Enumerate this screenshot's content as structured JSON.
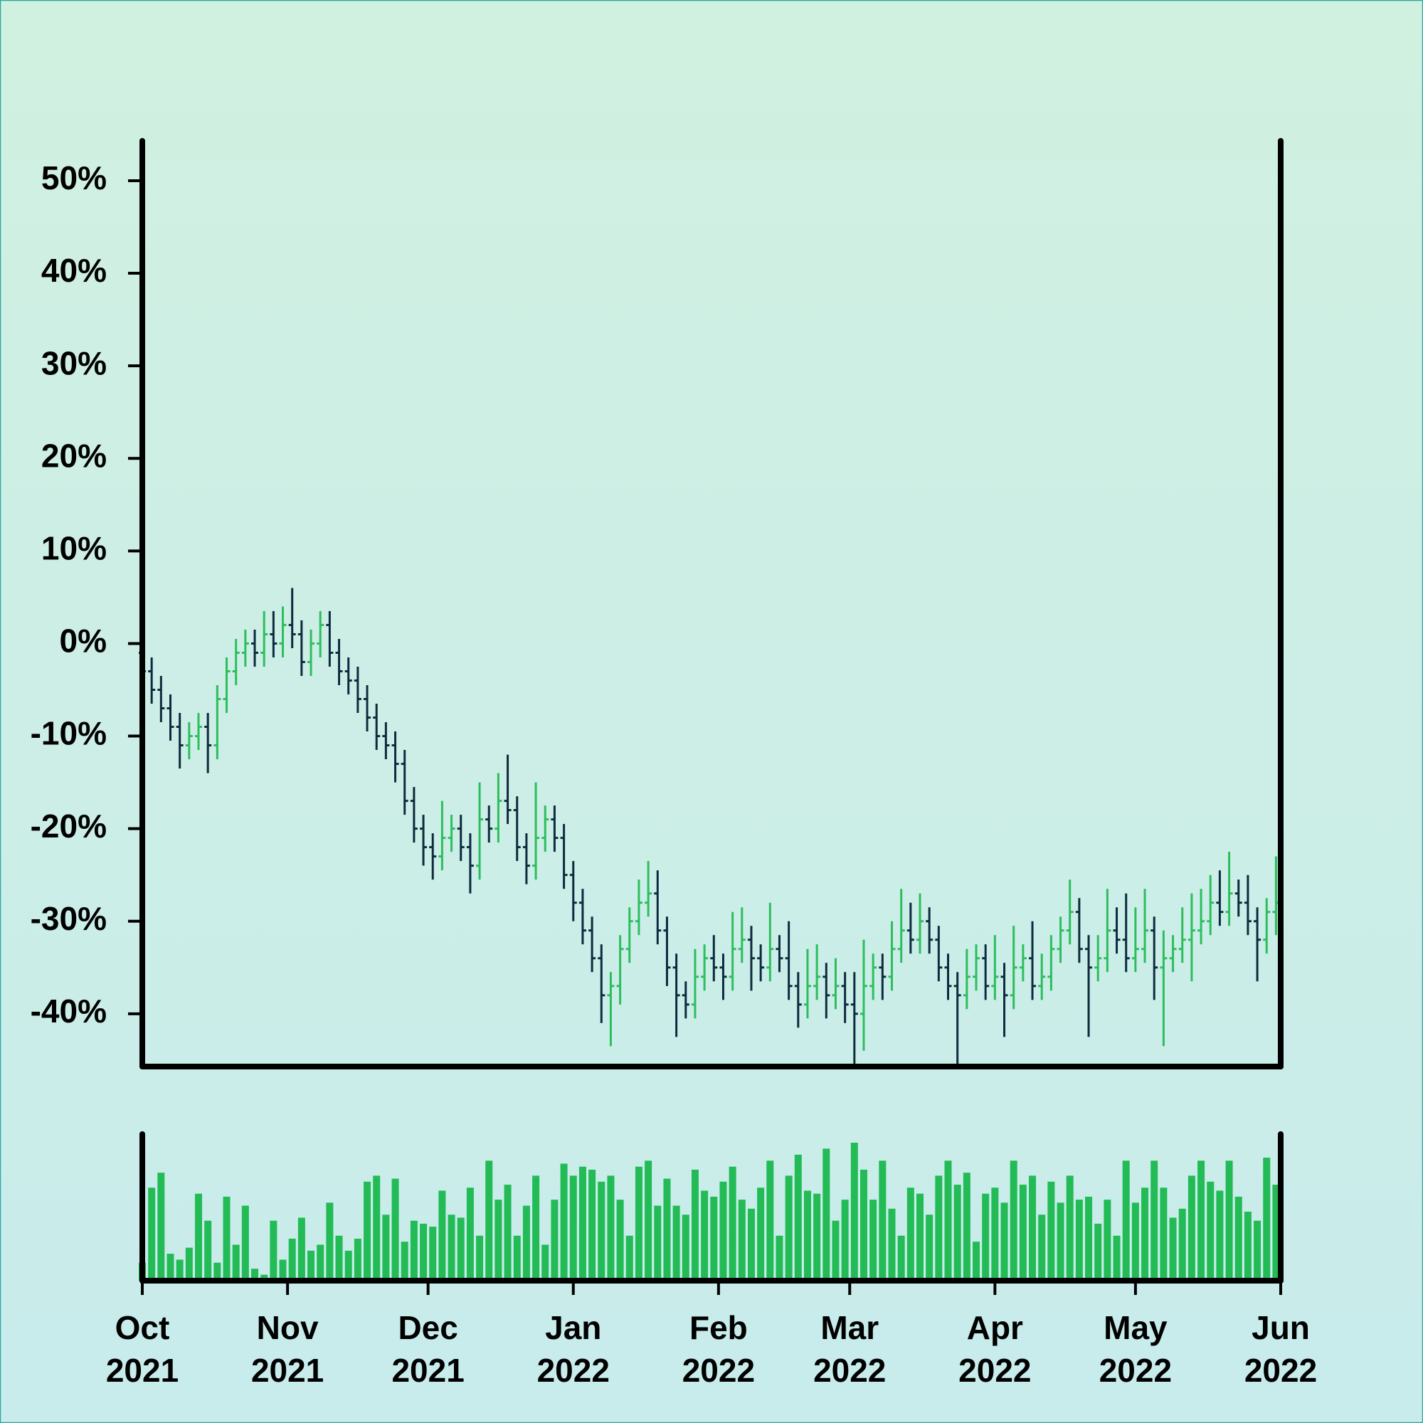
{
  "chart_data": {
    "type": "ohlc",
    "up_color": "#2dbe5c",
    "down_color": "#0d2b3e",
    "volume_color": "#22bb55",
    "x": [
      "2021-10-01",
      "2021-10-03",
      "2021-10-05",
      "2021-10-07",
      "2021-10-09",
      "2021-10-11",
      "2021-10-13",
      "2021-10-15",
      "2021-10-17",
      "2021-10-19",
      "2021-10-21",
      "2021-10-23",
      "2021-10-25",
      "2021-10-27",
      "2021-10-29",
      "2021-10-31",
      "2021-11-02",
      "2021-11-04",
      "2021-11-06",
      "2021-11-08",
      "2021-11-10",
      "2021-11-12",
      "2021-11-14",
      "2021-11-16",
      "2021-11-18",
      "2021-11-20",
      "2021-11-22",
      "2021-11-24",
      "2021-11-26",
      "2021-11-28",
      "2021-11-30",
      "2021-12-02",
      "2021-12-04",
      "2021-12-06",
      "2021-12-08",
      "2021-12-10",
      "2021-12-12",
      "2021-12-14",
      "2021-12-16",
      "2021-12-18",
      "2021-12-20",
      "2021-12-22",
      "2021-12-24",
      "2021-12-26",
      "2021-12-28",
      "2021-12-30",
      "2022-01-01",
      "2022-01-03",
      "2022-01-05",
      "2022-01-07",
      "2022-01-09",
      "2022-01-11",
      "2022-01-13",
      "2022-01-15",
      "2022-01-17",
      "2022-01-19",
      "2022-01-21",
      "2022-01-23",
      "2022-01-25",
      "2022-01-27",
      "2022-01-29",
      "2022-01-31",
      "2022-02-02",
      "2022-02-04",
      "2022-02-06",
      "2022-02-08",
      "2022-02-10",
      "2022-02-12",
      "2022-02-14",
      "2022-02-16",
      "2022-02-18",
      "2022-02-20",
      "2022-02-22",
      "2022-02-24",
      "2022-02-26",
      "2022-02-28",
      "2022-03-02",
      "2022-03-04",
      "2022-03-06",
      "2022-03-08",
      "2022-03-10",
      "2022-03-12",
      "2022-03-14",
      "2022-03-16",
      "2022-03-18",
      "2022-03-20",
      "2022-03-22",
      "2022-03-24",
      "2022-03-26",
      "2022-03-28",
      "2022-03-30",
      "2022-04-01",
      "2022-04-03",
      "2022-04-05",
      "2022-04-07",
      "2022-04-09",
      "2022-04-11",
      "2022-04-13",
      "2022-04-15",
      "2022-04-17",
      "2022-04-19",
      "2022-04-21",
      "2022-04-23",
      "2022-04-25",
      "2022-04-27",
      "2022-04-29",
      "2022-05-01",
      "2022-05-03",
      "2022-05-05",
      "2022-05-07",
      "2022-05-09",
      "2022-05-11",
      "2022-05-13",
      "2022-05-15",
      "2022-05-17",
      "2022-05-19",
      "2022-05-21",
      "2022-05-23",
      "2022-05-25",
      "2022-05-27",
      "2022-05-29",
      "2022-05-31"
    ],
    "values": [
      [
        -1,
        0.5,
        -4.5,
        -3
      ],
      [
        -3,
        -1.5,
        -6.5,
        -5
      ],
      [
        -5,
        -3.5,
        -8.5,
        -7
      ],
      [
        -7,
        -5.5,
        -10.5,
        -9
      ],
      [
        -9,
        -7.5,
        -13.5,
        -11
      ],
      [
        -11,
        -8.5,
        -12.5,
        -10
      ],
      [
        -10,
        -7.5,
        -11.5,
        -9
      ],
      [
        -9,
        -7.5,
        -14,
        -11
      ],
      [
        -11,
        -4.5,
        -12.5,
        -6
      ],
      [
        -6,
        -1.5,
        -7.5,
        -3
      ],
      [
        -3,
        0.5,
        -4.5,
        -1
      ],
      [
        -1,
        1.5,
        -2.5,
        0
      ],
      [
        0,
        1.5,
        -2.5,
        -1
      ],
      [
        -1,
        3.5,
        -2.5,
        1
      ],
      [
        1,
        3.5,
        -1.5,
        0
      ],
      [
        0,
        4,
        -1.5,
        2
      ],
      [
        2,
        6,
        -0.5,
        1
      ],
      [
        1,
        2.5,
        -3.5,
        -2
      ],
      [
        -2,
        1.5,
        -3.5,
        0
      ],
      [
        0,
        3.5,
        -1.5,
        2
      ],
      [
        2,
        3.5,
        -2.5,
        -1
      ],
      [
        -1,
        0.5,
        -4.5,
        -3
      ],
      [
        -3,
        -1.5,
        -5.5,
        -4
      ],
      [
        -4,
        -2.5,
        -7.5,
        -6
      ],
      [
        -6,
        -4.5,
        -9.5,
        -8
      ],
      [
        -8,
        -6.5,
        -11.5,
        -10
      ],
      [
        -10,
        -8.5,
        -12.5,
        -11
      ],
      [
        -11,
        -9.5,
        -15,
        -13
      ],
      [
        -13,
        -11.5,
        -18.5,
        -17
      ],
      [
        -17,
        -15.5,
        -21.5,
        -20
      ],
      [
        -20,
        -18.5,
        -24,
        -22
      ],
      [
        -22,
        -20.5,
        -25.5,
        -23
      ],
      [
        -23,
        -17,
        -24.5,
        -21
      ],
      [
        -21,
        -18.5,
        -22.5,
        -20
      ],
      [
        -20,
        -18.5,
        -23.5,
        -22
      ],
      [
        -22,
        -20.5,
        -27,
        -24
      ],
      [
        -24,
        -15,
        -25.5,
        -19
      ],
      [
        -19,
        -17.5,
        -21.5,
        -20
      ],
      [
        -20,
        -14,
        -21.5,
        -17
      ],
      [
        -17,
        -12,
        -19.5,
        -18
      ],
      [
        -18,
        -16.5,
        -23.5,
        -22
      ],
      [
        -22,
        -20.5,
        -26,
        -24
      ],
      [
        -24,
        -15,
        -25.5,
        -21
      ],
      [
        -21,
        -17.5,
        -22.5,
        -19
      ],
      [
        -19,
        -17.5,
        -22.5,
        -21
      ],
      [
        -21,
        -19.5,
        -26.5,
        -25
      ],
      [
        -25,
        -23.5,
        -30,
        -28
      ],
      [
        -28,
        -26.5,
        -32.5,
        -31
      ],
      [
        -31,
        -29.5,
        -35.5,
        -34
      ],
      [
        -34,
        -32.5,
        -41,
        -38
      ],
      [
        -38,
        -35.5,
        -43.5,
        -37
      ],
      [
        -37,
        -31.5,
        -39,
        -33
      ],
      [
        -33,
        -28.5,
        -34.5,
        -30
      ],
      [
        -30,
        -25.5,
        -31.5,
        -28
      ],
      [
        -28,
        -23.5,
        -29.5,
        -27
      ],
      [
        -27,
        -24.5,
        -32.5,
        -31
      ],
      [
        -31,
        -29.5,
        -37,
        -35
      ],
      [
        -35,
        -33.5,
        -42.5,
        -38
      ],
      [
        -38,
        -36.5,
        -40.5,
        -39
      ],
      [
        -39,
        -33,
        -40.5,
        -36
      ],
      [
        -36,
        -32.5,
        -37.5,
        -34
      ],
      [
        -34,
        -31.5,
        -36.5,
        -35
      ],
      [
        -35,
        -33.5,
        -38.5,
        -36
      ],
      [
        -36,
        -29,
        -37.5,
        -33
      ],
      [
        -33,
        -28.5,
        -34.5,
        -32
      ],
      [
        -32,
        -30.5,
        -37.5,
        -34
      ],
      [
        -34,
        -32.5,
        -36.5,
        -35
      ],
      [
        -35,
        -28,
        -36.5,
        -33
      ],
      [
        -33,
        -31.5,
        -35.5,
        -34
      ],
      [
        -34,
        -30,
        -38.5,
        -37
      ],
      [
        -37,
        -35.5,
        -41.5,
        -39
      ],
      [
        -39,
        -33,
        -40.5,
        -37
      ],
      [
        -37,
        -32.5,
        -38.5,
        -36
      ],
      [
        -36,
        -34.5,
        -40.5,
        -38
      ],
      [
        -38,
        -34,
        -39.5,
        -37
      ],
      [
        -37,
        -35.5,
        -41,
        -39
      ],
      [
        -39,
        -35.5,
        -45.5,
        -40
      ],
      [
        -40,
        -32,
        -44,
        -37
      ],
      [
        -37,
        -33.5,
        -38.5,
        -35
      ],
      [
        -35,
        -33.5,
        -38.5,
        -36
      ],
      [
        -36,
        -30,
        -37.5,
        -33
      ],
      [
        -33,
        -26.5,
        -34.5,
        -31
      ],
      [
        -31,
        -28,
        -33.5,
        -32
      ],
      [
        -32,
        -27,
        -33.5,
        -30
      ],
      [
        -30,
        -28.5,
        -33.5,
        -32
      ],
      [
        -32,
        -30.5,
        -36.5,
        -35
      ],
      [
        -35,
        -33.5,
        -38.5,
        -37
      ],
      [
        -37,
        -35.5,
        -45.5,
        -38
      ],
      [
        -38,
        -33,
        -39.5,
        -36
      ],
      [
        -36,
        -32.5,
        -37.5,
        -34
      ],
      [
        -34,
        -32.5,
        -38.5,
        -37
      ],
      [
        -37,
        -31.5,
        -38.5,
        -36
      ],
      [
        -36,
        -34.5,
        -42.5,
        -38
      ],
      [
        -38,
        -30.5,
        -39.5,
        -35
      ],
      [
        -35,
        -32.5,
        -36.5,
        -34
      ],
      [
        -34,
        -30,
        -38.5,
        -37
      ],
      [
        -37,
        -33.5,
        -38.5,
        -36
      ],
      [
        -36,
        -31.5,
        -37.5,
        -33
      ],
      [
        -33,
        -29.5,
        -34.5,
        -31
      ],
      [
        -31,
        -25.5,
        -32.5,
        -29
      ],
      [
        -29,
        -27.5,
        -34.5,
        -33
      ],
      [
        -33,
        -31.5,
        -42.5,
        -35
      ],
      [
        -35,
        -31.5,
        -36.5,
        -34
      ],
      [
        -34,
        -26.5,
        -35.5,
        -31
      ],
      [
        -31,
        -28.5,
        -33.5,
        -32
      ],
      [
        -32,
        -27,
        -35.5,
        -34
      ],
      [
        -34,
        -28.5,
        -35.5,
        -33
      ],
      [
        -33,
        -26.5,
        -34.5,
        -31
      ],
      [
        -31,
        -29.5,
        -38.5,
        -35
      ],
      [
        -35,
        -31,
        -43.5,
        -34
      ],
      [
        -34,
        -31.5,
        -35.5,
        -33
      ],
      [
        -33,
        -28.5,
        -34.5,
        -32
      ],
      [
        -32,
        -27,
        -36.5,
        -31
      ],
      [
        -31,
        -26.5,
        -32.5,
        -30
      ],
      [
        -30,
        -25,
        -31.5,
        -28
      ],
      [
        -28,
        -24.5,
        -30.5,
        -29
      ],
      [
        -29,
        -22.5,
        -30.5,
        -27
      ],
      [
        -27,
        -25.5,
        -29.5,
        -28
      ],
      [
        -28,
        -25,
        -31.5,
        -30
      ],
      [
        -30,
        -28.5,
        -36.5,
        -32
      ],
      [
        -32,
        -27.5,
        -33.5,
        -29
      ],
      [
        -29,
        -23,
        -31.5,
        -28
      ]
    ],
    "volume": [
      12,
      62,
      72,
      18,
      14,
      22,
      58,
      40,
      12,
      56,
      24,
      50,
      8,
      4,
      40,
      14,
      28,
      42,
      20,
      24,
      52,
      30,
      20,
      28,
      66,
      70,
      44,
      68,
      26,
      40,
      38,
      36,
      60,
      44,
      42,
      62,
      30,
      80,
      54,
      64,
      30,
      50,
      70,
      24,
      54,
      78,
      70,
      76,
      74,
      66,
      70,
      54,
      30,
      76,
      80,
      50,
      68,
      50,
      44,
      74,
      60,
      56,
      66,
      76,
      54,
      48,
      62,
      80,
      30,
      70,
      84,
      60,
      58,
      88,
      40,
      54,
      92,
      74,
      54,
      80,
      48,
      30,
      62,
      58,
      44,
      70,
      80,
      64,
      72,
      26,
      58,
      62,
      52,
      80,
      64,
      70,
      44,
      66,
      52,
      70,
      54,
      56,
      38,
      54,
      30,
      80,
      52,
      62,
      80,
      62,
      42,
      48,
      70,
      80,
      66,
      60,
      80,
      56,
      46,
      40,
      82,
      64
    ],
    "xlim": [
      "2021-10-01",
      "2022-06-01"
    ],
    "xticks": [
      {
        "value": "2021-10-01",
        "label": "Oct 2021"
      },
      {
        "value": "2021-11-01",
        "label": "Nov 2021"
      },
      {
        "value": "2021-12-01",
        "label": "Dec 2021"
      },
      {
        "value": "2022-01-01",
        "label": "Jan 2022"
      },
      {
        "value": "2022-02-01",
        "label": "Feb 2022"
      },
      {
        "value": "2022-03-01",
        "label": "Mar 2022"
      },
      {
        "value": "2022-04-01",
        "label": "Apr 2022"
      },
      {
        "value": "2022-05-01",
        "label": "May 2022"
      },
      {
        "value": "2022-06-01",
        "label": "Jun 2022"
      }
    ],
    "ylim": [
      -45.7,
      54.3
    ],
    "yticks": [
      {
        "value": -40,
        "label": "-40%"
      },
      {
        "value": -30,
        "label": "-30%"
      },
      {
        "value": -20,
        "label": "-20%"
      },
      {
        "value": -10,
        "label": "-10%"
      },
      {
        "value": 0,
        "label": "0%"
      },
      {
        "value": 10,
        "label": "10%"
      },
      {
        "value": 20,
        "label": "20%"
      },
      {
        "value": 30,
        "label": "30%"
      },
      {
        "value": 40,
        "label": "40%"
      },
      {
        "value": 50,
        "label": "50%"
      }
    ]
  }
}
